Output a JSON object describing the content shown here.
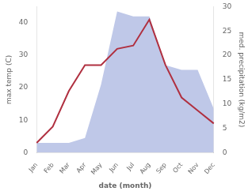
{
  "chart_data": {
    "type": "line",
    "xlabel": "date (month)",
    "ylabel": "max temp (C)",
    "y2label": "med. precipitation (kg/m2)",
    "categories": [
      "Jan",
      "Feb",
      "Mar",
      "Apr",
      "May",
      "Jun",
      "Jul",
      "Aug",
      "Sep",
      "Oct",
      "Nov",
      "Dec"
    ],
    "series": [
      {
        "type": "area",
        "axis": "y2",
        "color": "#bfc8e8",
        "values": [
          2,
          2,
          2,
          3,
          14,
          29,
          28,
          28,
          18,
          17,
          17,
          9
        ]
      },
      {
        "type": "line",
        "color": "#b03040",
        "values": [
          3,
          8,
          19,
          27,
          27,
          32,
          33,
          41,
          27,
          17,
          13,
          9
        ]
      }
    ],
    "ylim": [
      0,
      45
    ],
    "yticks": [
      0,
      10,
      20,
      30,
      40
    ],
    "y2lim": [
      0,
      30
    ],
    "y2ticks": [
      0,
      5,
      10,
      15,
      20,
      25,
      30
    ],
    "grid": false
  }
}
